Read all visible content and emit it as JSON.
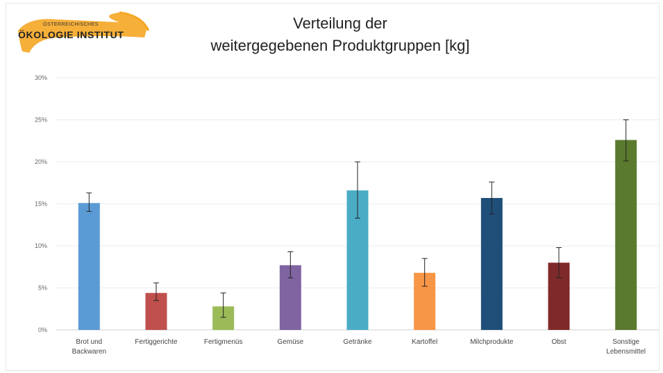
{
  "logo": {
    "line1": "ÖSTERREICHISCHES",
    "line2": "ÖKOLOGIE INSTITUT"
  },
  "chart_data": {
    "type": "bar",
    "title": [
      "Verteilung der",
      "weitergegebenen Produktgruppen [kg]"
    ],
    "categories": [
      "Brot und Backwaren",
      "Fertiggerichte",
      "Fertigmenüs",
      "Gemüse",
      "Getränke",
      "Kartoffel",
      "Milchprodukte",
      "Obst",
      "Sonstige Lebensmittel"
    ],
    "category_lines": [
      [
        "Brot und",
        "Backwaren"
      ],
      [
        "Fertiggerichte"
      ],
      [
        "Fertigmenüs"
      ],
      [
        "Gemüse"
      ],
      [
        "Getränke"
      ],
      [
        "Kartoffel"
      ],
      [
        "Milchprodukte"
      ],
      [
        "Obst"
      ],
      [
        "Sonstige",
        "Lebensmittel"
      ]
    ],
    "values": [
      15.1,
      4.4,
      2.8,
      7.7,
      16.6,
      6.8,
      15.7,
      8.0,
      22.6
    ],
    "error_low": [
      14.1,
      3.5,
      1.5,
      6.2,
      13.3,
      5.2,
      13.8,
      6.2,
      20.1
    ],
    "error_high": [
      16.3,
      5.6,
      4.4,
      9.3,
      20.0,
      8.5,
      17.6,
      9.8,
      25.0
    ],
    "colors": [
      "#5b9bd5",
      "#c0504d",
      "#9bbb59",
      "#8064a2",
      "#4bacc6",
      "#f79646",
      "#1f4e79",
      "#7f2a2a",
      "#5a7a2e"
    ],
    "ylim": [
      0,
      30
    ],
    "yticks": [
      "0%",
      "5%",
      "10%",
      "15%",
      "20%",
      "25%",
      "30%"
    ],
    "ytick_values": [
      0,
      5,
      10,
      15,
      20,
      25,
      30
    ],
    "grid": true
  }
}
